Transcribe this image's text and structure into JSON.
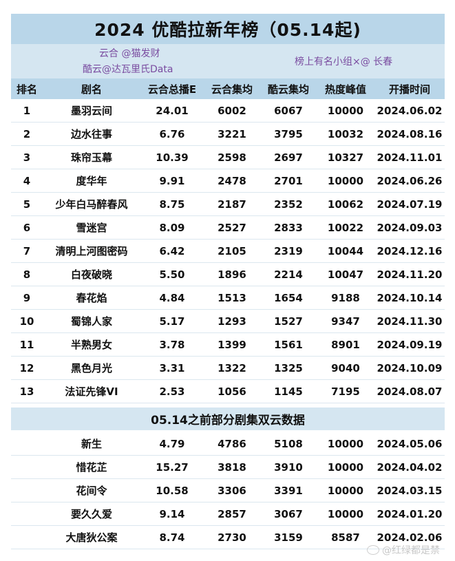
{
  "title": "2024 优酷拉新年榜（05.14起)",
  "credits": {
    "line1": "云合 @猫发财",
    "line2": "酷云@达瓦里氏Data",
    "line3": "榜上有名小组×@ 长春"
  },
  "columns": [
    "排名",
    "剧名",
    "云合总播E",
    "云合集均",
    "酷云集均",
    "热度峰值",
    "开播时间"
  ],
  "rows": [
    {
      "rank": "1",
      "name": "墨羽云间",
      "total": "24.01",
      "yh_avg": "6002",
      "ky_avg": "6067",
      "heat": "10000",
      "date": "2024.06.02"
    },
    {
      "rank": "2",
      "name": "边水往事",
      "total": "6.76",
      "yh_avg": "3221",
      "ky_avg": "3795",
      "heat": "10032",
      "date": "2024.08.16"
    },
    {
      "rank": "3",
      "name": "珠帘玉幕",
      "total": "10.39",
      "yh_avg": "2598",
      "ky_avg": "2697",
      "heat": "10327",
      "date": "2024.11.01"
    },
    {
      "rank": "4",
      "name": "度华年",
      "total": "9.91",
      "yh_avg": "2478",
      "ky_avg": "2701",
      "heat": "10000",
      "date": "2024.06.26"
    },
    {
      "rank": "5",
      "name": "少年白马醉春风",
      "total": "8.75",
      "yh_avg": "2187",
      "ky_avg": "2352",
      "heat": "10062",
      "date": "2024.07.19"
    },
    {
      "rank": "6",
      "name": "雪迷宫",
      "total": "8.09",
      "yh_avg": "2527",
      "ky_avg": "2833",
      "heat": "10022",
      "date": "2024.09.03"
    },
    {
      "rank": "7",
      "name": "清明上河图密码",
      "total": "6.42",
      "yh_avg": "2105",
      "ky_avg": "2319",
      "heat": "10044",
      "date": "2024.12.16"
    },
    {
      "rank": "8",
      "name": "白夜破晓",
      "total": "5.50",
      "yh_avg": "1896",
      "ky_avg": "2214",
      "heat": "10047",
      "date": "2024.11.20"
    },
    {
      "rank": "9",
      "name": "春花焰",
      "total": "4.84",
      "yh_avg": "1513",
      "ky_avg": "1654",
      "heat": "9188",
      "date": "2024.10.14"
    },
    {
      "rank": "10",
      "name": "蜀锦人家",
      "total": "5.17",
      "yh_avg": "1293",
      "ky_avg": "1527",
      "heat": "9347",
      "date": "2024.11.30"
    },
    {
      "rank": "11",
      "name": "半熟男女",
      "total": "3.78",
      "yh_avg": "1399",
      "ky_avg": "1561",
      "heat": "8901",
      "date": "2024.09.19"
    },
    {
      "rank": "12",
      "name": "黑色月光",
      "total": "3.31",
      "yh_avg": "1322",
      "ky_avg": "1325",
      "heat": "9040",
      "date": "2024.10.09"
    },
    {
      "rank": "13",
      "name": "法证先锋VI",
      "total": "2.53",
      "yh_avg": "1056",
      "ky_avg": "1145",
      "heat": "7195",
      "date": "2024.08.07"
    }
  ],
  "section2_title": "05.14之前部分剧集双云数据",
  "rows2": [
    {
      "rank": "",
      "name": "新生",
      "total": "4.79",
      "yh_avg": "4786",
      "ky_avg": "5108",
      "heat": "10000",
      "date": "2024.05.06"
    },
    {
      "rank": "",
      "name": "惜花芷",
      "total": "15.27",
      "yh_avg": "3818",
      "ky_avg": "3910",
      "heat": "10000",
      "date": "2024.04.02"
    },
    {
      "rank": "",
      "name": "花间令",
      "total": "10.58",
      "yh_avg": "3306",
      "ky_avg": "3391",
      "heat": "10000",
      "date": "2024.03.15"
    },
    {
      "rank": "",
      "name": "要久久爱",
      "total": "9.14",
      "yh_avg": "2857",
      "ky_avg": "3067",
      "heat": "10000",
      "date": "2024.01.20"
    },
    {
      "rank": "",
      "name": "大唐狄公案",
      "total": "8.74",
      "yh_avg": "2730",
      "ky_avg": "3159",
      "heat": "8587",
      "date": "2024.02.06"
    }
  ],
  "watermark": "@红绿都是禁"
}
